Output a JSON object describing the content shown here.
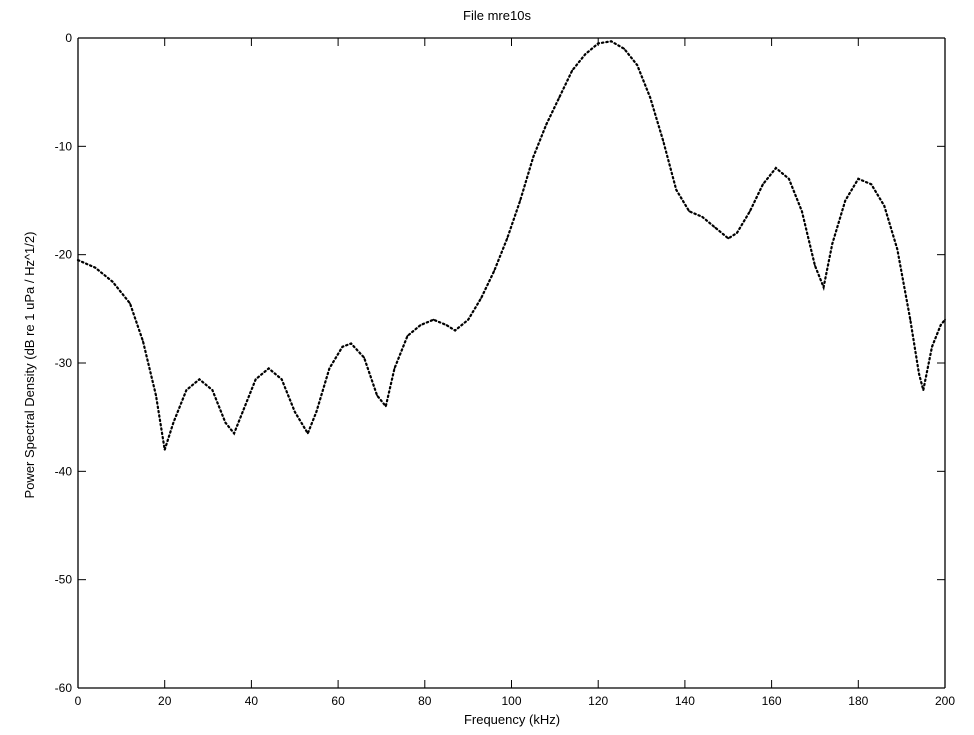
{
  "chart_data": {
    "type": "line",
    "title": "File mre10s",
    "xlabel": "Frequency (kHz)",
    "ylabel": "Power Spectral Density (dB re 1 uPa / Hz^1/2)",
    "xlim": [
      0,
      200
    ],
    "ylim": [
      -60,
      0
    ],
    "xticks": [
      0,
      20,
      40,
      60,
      80,
      100,
      120,
      140,
      160,
      180,
      200
    ],
    "yticks": [
      0,
      -10,
      -20,
      -30,
      -40,
      -50,
      -60
    ],
    "xtick_labels": [
      "0",
      "20",
      "40",
      "60",
      "80",
      "100",
      "120",
      "140",
      "160",
      "180",
      "200"
    ],
    "ytick_labels": [
      "0",
      "-10",
      "-20",
      "-30",
      "-40",
      "-50",
      "-60"
    ],
    "grid": false,
    "line_style": "dotted",
    "series": [
      {
        "color": "#000000",
        "x": [
          0,
          4,
          8,
          12,
          15,
          18,
          20,
          22,
          25,
          28,
          31,
          34,
          36,
          38,
          41,
          44,
          47,
          50,
          53,
          55,
          58,
          61,
          63,
          66,
          69,
          71,
          73,
          76,
          79,
          82,
          85,
          87,
          90,
          93,
          96,
          99,
          102,
          105,
          108,
          111,
          114,
          117,
          120,
          123,
          126,
          129,
          132,
          135,
          138,
          141,
          144,
          147,
          150,
          152,
          155,
          158,
          161,
          164,
          167,
          170,
          172,
          174,
          177,
          180,
          183,
          186,
          189,
          192,
          194,
          195,
          197,
          199,
          200
        ],
        "y": [
          -20.5,
          -21.2,
          -22.5,
          -24.5,
          -28,
          -33,
          -38,
          -35.5,
          -32.5,
          -31.5,
          -32.5,
          -35.5,
          -36.5,
          -34.5,
          -31.5,
          -30.5,
          -31.5,
          -34.5,
          -36.5,
          -34.5,
          -30.5,
          -28.5,
          -28.2,
          -29.5,
          -33,
          -34,
          -30.5,
          -27.5,
          -26.5,
          -26,
          -26.5,
          -27,
          -26,
          -24,
          -21.5,
          -18.5,
          -15,
          -11,
          -8,
          -5.5,
          -3,
          -1.5,
          -0.5,
          -0.3,
          -1,
          -2.5,
          -5.5,
          -9.5,
          -14,
          -16,
          -16.5,
          -17.5,
          -18.5,
          -18,
          -16,
          -13.5,
          -12,
          -13,
          -16,
          -21,
          -23,
          -19,
          -15,
          -13,
          -13.5,
          -15.5,
          -19.5,
          -26,
          -31,
          -32.5,
          -28.5,
          -26.5,
          -26
        ]
      }
    ]
  }
}
